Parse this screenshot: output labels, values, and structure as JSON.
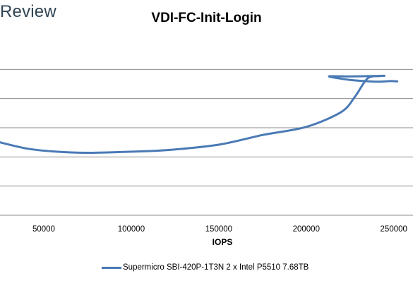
{
  "brand": {
    "text": "Review"
  },
  "chart_data": {
    "type": "line",
    "title": "VDI-FC-Init-Login",
    "xlabel": "IOPS",
    "ylabel": "",
    "x_ticks": [
      50000,
      100000,
      150000,
      200000,
      250000
    ],
    "x_tick_labels": [
      "50000",
      "100000",
      "150000",
      "200000",
      "250000"
    ],
    "xlim": [
      25000,
      261000
    ],
    "ylim": [
      0,
      6
    ],
    "grid": true,
    "legend_position": "bottom",
    "line_color": "#4a7ab5",
    "series": [
      {
        "name": "Supermicro SBI-420P-1T3N 2 x Intel P5510 7.68TB",
        "x": [
          25000,
          40000,
          55000,
          75000,
          100000,
          120000,
          150000,
          175000,
          200000,
          220000,
          228000,
          235000,
          242000,
          244500,
          237000,
          225000,
          213000,
          225000,
          240000,
          248000,
          252000
        ],
        "y": [
          2.5,
          2.29,
          2.19,
          2.14,
          2.18,
          2.23,
          2.42,
          2.75,
          3.03,
          3.54,
          4.08,
          4.69,
          4.77,
          4.78,
          4.77,
          4.76,
          4.76,
          4.64,
          4.58,
          4.6,
          4.59
        ]
      }
    ]
  }
}
